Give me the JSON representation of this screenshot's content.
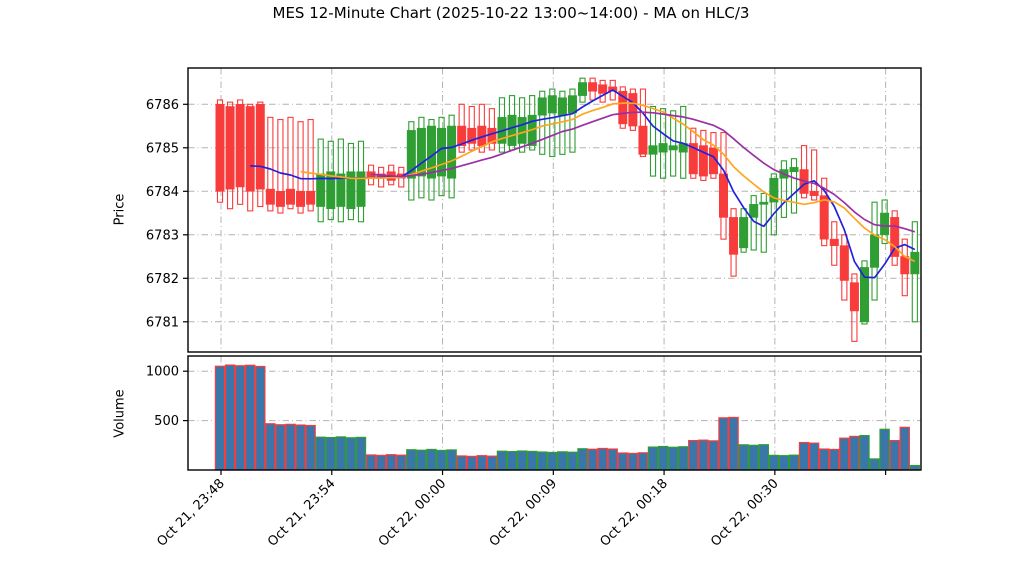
{
  "title": "MES 12-Minute Chart (2025-10-22 13:00~14:00) - MA on HLC/3",
  "price_axis": {
    "label": "Price",
    "ticks": [
      6781,
      6782,
      6783,
      6784,
      6785,
      6786
    ]
  },
  "volume_axis": {
    "label": "Volume",
    "ticks": [
      500,
      1000
    ]
  },
  "x_axis": {
    "tick_labels": [
      "Oct 21, 23:48",
      "Oct 21, 23:54",
      "Oct 22, 00:00",
      "Oct 22, 00:09",
      "Oct 22, 00:18",
      "Oct 22, 00:30",
      ""
    ],
    "tick_candle_indices": [
      0,
      11,
      22,
      33,
      44,
      55,
      66
    ]
  },
  "chart_data": {
    "type": "candlestick+volume",
    "title": "MES 12-Minute Chart (2025-10-22 13:00~14:00) - MA on HLC/3",
    "ylabel_price": "Price",
    "ylabel_volume": "Volume",
    "price_ylim": [
      6780.9,
      6786.85
    ],
    "volume_ylim": [
      0,
      1150
    ],
    "grid": "dash-dot",
    "columns": [
      "open",
      "high",
      "low",
      "close",
      "volume"
    ],
    "candles": [
      [
        6786.0,
        6786.1,
        6783.75,
        6784.0,
        1050
      ],
      [
        6785.95,
        6786.05,
        6783.6,
        6784.05,
        1062
      ],
      [
        6786.0,
        6786.1,
        6783.7,
        6784.1,
        1055
      ],
      [
        6785.95,
        6786.0,
        6783.55,
        6784.0,
        1060
      ],
      [
        6786.0,
        6786.05,
        6783.65,
        6784.05,
        1048
      ],
      [
        6784.05,
        6785.7,
        6783.55,
        6783.7,
        468
      ],
      [
        6784.0,
        6785.65,
        6783.5,
        6783.65,
        458
      ],
      [
        6784.05,
        6785.7,
        6783.6,
        6783.7,
        462
      ],
      [
        6784.0,
        6785.6,
        6783.5,
        6783.65,
        455
      ],
      [
        6784.0,
        6785.65,
        6783.55,
        6783.7,
        450
      ],
      [
        6783.65,
        6785.2,
        6783.3,
        6784.4,
        332
      ],
      [
        6783.6,
        6785.15,
        6783.35,
        6784.45,
        328
      ],
      [
        6783.65,
        6785.2,
        6783.3,
        6784.4,
        335
      ],
      [
        6783.6,
        6785.1,
        6783.35,
        6784.45,
        326
      ],
      [
        6783.65,
        6785.15,
        6783.3,
        6784.45,
        330
      ],
      [
        6784.45,
        6784.6,
        6784.15,
        6784.3,
        152
      ],
      [
        6784.4,
        6784.55,
        6784.1,
        6784.3,
        148
      ],
      [
        6784.45,
        6784.6,
        6784.15,
        6784.25,
        155
      ],
      [
        6784.4,
        6784.55,
        6784.1,
        6784.3,
        150
      ],
      [
        6784.3,
        6785.6,
        6783.8,
        6785.4,
        205
      ],
      [
        6784.35,
        6785.7,
        6783.85,
        6785.45,
        200
      ],
      [
        6784.3,
        6785.65,
        6783.8,
        6785.5,
        208
      ],
      [
        6784.35,
        6785.7,
        6783.9,
        6785.45,
        198
      ],
      [
        6784.3,
        6785.75,
        6783.85,
        6785.5,
        203
      ],
      [
        6785.5,
        6786.0,
        6784.9,
        6785.05,
        142
      ],
      [
        6785.45,
        6785.95,
        6784.95,
        6785.1,
        138
      ],
      [
        6785.5,
        6786.0,
        6784.9,
        6785.05,
        145
      ],
      [
        6785.45,
        6785.9,
        6784.95,
        6785.1,
        140
      ],
      [
        6785.1,
        6786.15,
        6784.9,
        6785.7,
        190
      ],
      [
        6785.05,
        6786.2,
        6784.95,
        6785.75,
        186
      ],
      [
        6785.1,
        6786.15,
        6784.9,
        6785.7,
        192
      ],
      [
        6785.05,
        6786.2,
        6784.95,
        6785.75,
        188
      ],
      [
        6785.75,
        6786.3,
        6784.85,
        6786.15,
        182
      ],
      [
        6785.8,
        6786.35,
        6784.8,
        6786.2,
        178
      ],
      [
        6785.75,
        6786.3,
        6784.85,
        6786.15,
        184
      ],
      [
        6785.8,
        6786.35,
        6784.9,
        6786.2,
        180
      ],
      [
        6786.2,
        6786.6,
        6786.05,
        6786.5,
        215
      ],
      [
        6786.5,
        6786.6,
        6786.1,
        6786.3,
        210
      ],
      [
        6786.45,
        6786.55,
        6786.05,
        6786.25,
        218
      ],
      [
        6786.4,
        6786.55,
        6786.1,
        6786.3,
        212
      ],
      [
        6786.3,
        6786.4,
        6785.45,
        6785.55,
        172
      ],
      [
        6786.25,
        6786.35,
        6785.4,
        6785.5,
        168
      ],
      [
        6785.5,
        6786.35,
        6784.8,
        6784.85,
        174
      ],
      [
        6784.85,
        6785.95,
        6784.35,
        6785.05,
        232
      ],
      [
        6784.9,
        6785.9,
        6784.3,
        6785.1,
        238
      ],
      [
        6784.95,
        6785.85,
        6784.35,
        6785.05,
        230
      ],
      [
        6784.9,
        6785.95,
        6784.3,
        6785.1,
        235
      ],
      [
        6785.1,
        6785.45,
        6784.3,
        6784.4,
        298
      ],
      [
        6785.05,
        6785.4,
        6784.25,
        6784.35,
        302
      ],
      [
        6785.0,
        6785.35,
        6784.3,
        6784.4,
        295
      ],
      [
        6784.4,
        6785.35,
        6782.9,
        6783.4,
        528
      ],
      [
        6783.4,
        6783.6,
        6782.05,
        6782.55,
        532
      ],
      [
        6782.7,
        6783.6,
        6782.6,
        6783.4,
        255
      ],
      [
        6783.4,
        6783.9,
        6782.65,
        6783.7,
        250
      ],
      [
        6783.7,
        6783.95,
        6782.6,
        6783.75,
        256
      ],
      [
        6783.75,
        6784.4,
        6783.0,
        6784.3,
        148
      ],
      [
        6784.3,
        6784.7,
        6783.4,
        6784.5,
        145
      ],
      [
        6784.45,
        6784.75,
        6783.5,
        6784.55,
        150
      ],
      [
        6784.5,
        6785.05,
        6783.85,
        6783.95,
        278
      ],
      [
        6784.0,
        6784.95,
        6783.8,
        6783.9,
        272
      ],
      [
        6783.9,
        6784.3,
        6782.75,
        6782.9,
        212
      ],
      [
        6782.9,
        6783.3,
        6782.3,
        6782.75,
        208
      ],
      [
        6782.75,
        6783.0,
        6781.5,
        6781.95,
        322
      ],
      [
        6781.9,
        6782.1,
        6780.55,
        6781.25,
        340
      ],
      [
        6781.0,
        6782.4,
        6780.95,
        6782.25,
        348
      ],
      [
        6782.25,
        6783.75,
        6781.5,
        6783.0,
        112
      ],
      [
        6783.0,
        6783.8,
        6782.8,
        6783.5,
        412
      ],
      [
        6783.4,
        6783.55,
        6782.3,
        6782.5,
        298
      ],
      [
        6782.5,
        6782.9,
        6781.6,
        6782.1,
        432
      ],
      [
        6782.1,
        6783.3,
        6781.0,
        6782.6,
        45
      ]
    ],
    "moving_averages": [
      {
        "name": "ma-fast",
        "source": "HLC/3",
        "window": 4,
        "color": "#2222dd"
      },
      {
        "name": "ma-mid",
        "source": "HLC/3",
        "window": 9,
        "color": "#ffa51e"
      },
      {
        "name": "ma-slow",
        "source": "HLC/3",
        "window": 16,
        "color": "#9b2fa5"
      }
    ],
    "colors": {
      "up": "#2f9e33",
      "down": "#f83c3c",
      "volume_fill": "#3b76ab",
      "grid": "#b4b4b4",
      "axis": "#000000"
    },
    "legend": "none"
  }
}
